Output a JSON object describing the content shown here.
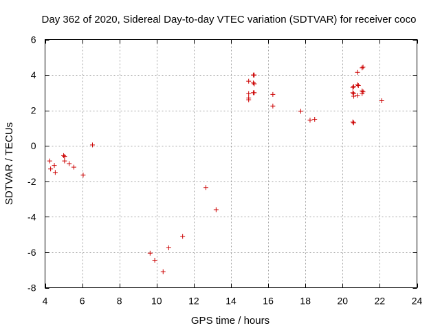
{
  "chart_data": {
    "type": "scatter",
    "title": "Day 362 of 2020, Sidereal Day-to-day VTEC variation (SDTVAR) for receiver coco",
    "xlabel": "GPS time / hours",
    "ylabel": "SDTVAR / TECUs",
    "xlim": [
      4,
      24
    ],
    "ylim": [
      -8,
      6
    ],
    "xticks": [
      4,
      6,
      8,
      10,
      12,
      14,
      16,
      18,
      20,
      22,
      24
    ],
    "yticks": [
      -8,
      -6,
      -4,
      -2,
      0,
      2,
      4,
      6
    ],
    "grid": true,
    "marker": "plus",
    "color": "#cc0000",
    "series": [
      {
        "name": "SDTVAR",
        "points": [
          [
            4.25,
            -0.85
          ],
          [
            4.3,
            -1.3
          ],
          [
            4.5,
            -1.1
          ],
          [
            4.55,
            -1.5
          ],
          [
            5.0,
            -0.55
          ],
          [
            5.05,
            -0.6
          ],
          [
            5.05,
            -0.85
          ],
          [
            5.3,
            -1.0
          ],
          [
            5.55,
            -1.2
          ],
          [
            6.05,
            -1.65
          ],
          [
            6.55,
            0.05
          ],
          [
            9.65,
            -6.05
          ],
          [
            9.9,
            -6.45
          ],
          [
            10.35,
            -7.1
          ],
          [
            10.65,
            -5.75
          ],
          [
            11.4,
            -5.1
          ],
          [
            12.65,
            -2.35
          ],
          [
            13.2,
            -3.6
          ],
          [
            14.95,
            3.65
          ],
          [
            14.95,
            2.95
          ],
          [
            14.95,
            2.7
          ],
          [
            14.95,
            2.6
          ],
          [
            15.2,
            4.0
          ],
          [
            15.25,
            4.0
          ],
          [
            15.2,
            3.55
          ],
          [
            15.25,
            3.5
          ],
          [
            15.2,
            3.0
          ],
          [
            15.25,
            3.0
          ],
          [
            16.25,
            2.9
          ],
          [
            16.25,
            2.25
          ],
          [
            17.75,
            1.95
          ],
          [
            18.25,
            1.45
          ],
          [
            18.5,
            1.5
          ],
          [
            20.55,
            3.3
          ],
          [
            20.6,
            3.35
          ],
          [
            20.55,
            3.0
          ],
          [
            20.6,
            2.95
          ],
          [
            20.6,
            2.8
          ],
          [
            20.55,
            1.35
          ],
          [
            20.6,
            1.3
          ],
          [
            20.8,
            4.15
          ],
          [
            20.8,
            3.45
          ],
          [
            20.85,
            3.4
          ],
          [
            20.8,
            2.85
          ],
          [
            21.05,
            4.4
          ],
          [
            21.1,
            4.45
          ],
          [
            21.05,
            3.1
          ],
          [
            21.1,
            3.05
          ],
          [
            21.05,
            2.95
          ],
          [
            22.1,
            2.55
          ]
        ]
      }
    ]
  }
}
